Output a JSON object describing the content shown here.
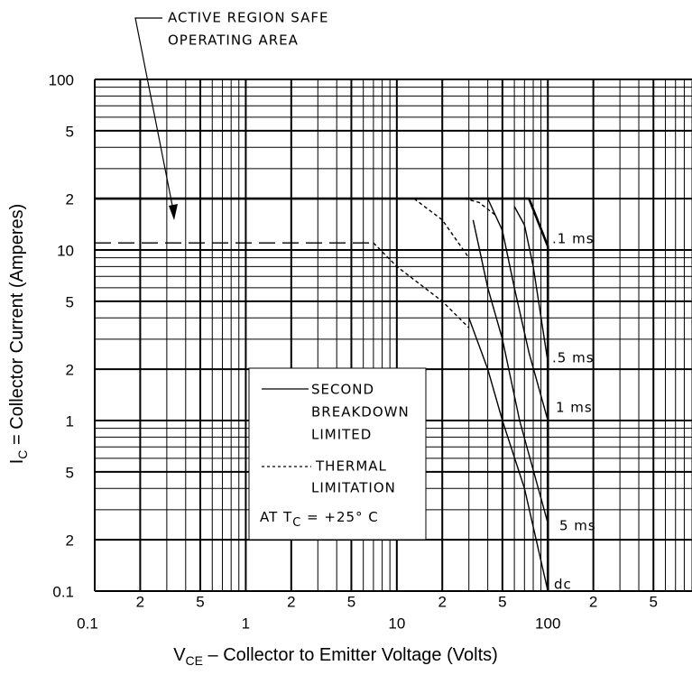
{
  "chart_data": {
    "type": "line",
    "annotation": [
      "ACTIVE REGION SAFE",
      "OPERATING AREA"
    ],
    "x_label": {
      "main": "V",
      "sub": "CE",
      "rest": " – Collector to Emitter Voltage (Volts)"
    },
    "y_label": {
      "main": "I",
      "sub": "C",
      "rest": " = Collector Current (Amperes)"
    },
    "log_x": true,
    "log_y": true,
    "grid": true,
    "xlim": [
      0.1,
      900
    ],
    "ylim": [
      0.1,
      100
    ],
    "xticks": [
      0.1,
      {
        "value": 0.2,
        "label": "2"
      },
      {
        "value": 0.5,
        "label": "5"
      },
      1,
      {
        "value": 2,
        "label": "2"
      },
      {
        "value": 5,
        "label": "5"
      },
      10,
      {
        "value": 20,
        "label": "2"
      },
      {
        "value": 50,
        "label": "5"
      },
      100,
      {
        "value": 200,
        "label": "2"
      },
      {
        "value": 500,
        "label": "5"
      }
    ],
    "yticks": [
      0.1,
      {
        "value": 0.2,
        "label": "2"
      },
      {
        "value": 0.5,
        "label": "5"
      },
      1,
      {
        "value": 2,
        "label": "2"
      },
      {
        "value": 5,
        "label": "5"
      },
      10,
      {
        "value": 20,
        "label": "2"
      },
      {
        "value": 50,
        "label": "5"
      },
      100
    ],
    "xgrid": [
      0.1,
      0.2,
      0.3,
      0.4,
      0.5,
      0.6,
      0.7,
      0.8,
      0.9,
      1,
      2,
      3,
      4,
      5,
      6,
      7,
      8,
      9,
      10,
      20,
      30,
      40,
      50,
      60,
      70,
      80,
      90,
      100,
      200,
      300,
      400,
      500,
      600,
      700,
      800,
      900
    ],
    "ygrid": [
      0.1,
      0.2,
      0.3,
      0.4,
      0.5,
      0.6,
      0.7,
      0.8,
      0.9,
      1,
      2,
      3,
      4,
      5,
      6,
      7,
      8,
      9,
      10,
      20,
      30,
      40,
      50,
      60,
      70,
      80,
      90,
      100
    ],
    "color": "#000000",
    "series": [
      {
        "style": "solid",
        "label": ".1 ms",
        "x": [
          0.1,
          75,
          100,
          100
        ],
        "values": [
          20,
          20,
          10.5,
          0.1
        ]
      },
      {
        "style": "solid",
        "label": ".5 ms",
        "x": [
          60,
          70,
          80,
          100
        ],
        "values": [
          18,
          14,
          8,
          2.2
        ]
      },
      {
        "style": "solid",
        "label": "1 ms",
        "x": [
          40,
          50,
          60,
          75,
          100
        ],
        "values": [
          20,
          13,
          6,
          2.5,
          1
        ]
      },
      {
        "style": "solid",
        "label": "5 ms",
        "x": [
          32,
          40,
          50,
          65,
          100
        ],
        "values": [
          15,
          6,
          3,
          1,
          0.25
        ]
      },
      {
        "style": "solid",
        "label": "dc",
        "x": [
          30,
          40,
          50,
          70,
          100
        ],
        "values": [
          4,
          2,
          1,
          0.4,
          0.1
        ]
      },
      {
        "style": "dashed",
        "x": [
          0.1,
          7
        ],
        "values": [
          11,
          11
        ]
      },
      {
        "style": "dotted",
        "x": [
          7,
          10,
          20,
          30
        ],
        "values": [
          11,
          8,
          5,
          3.5
        ]
      },
      {
        "style": "dotted",
        "x": [
          13,
          20,
          30
        ],
        "values": [
          20,
          15,
          9
        ]
      },
      {
        "style": "dotted",
        "x": [
          28,
          35,
          45
        ],
        "values": [
          20,
          19,
          16
        ]
      }
    ],
    "legend": {
      "solid": [
        "SECOND",
        "BREAKDOWN",
        "LIMITED"
      ],
      "dotted": [
        "THERMAL",
        "LIMITATION"
      ],
      "condition": {
        "main": "AT T",
        "sub": "C",
        "rest": " = +25° C"
      }
    }
  }
}
